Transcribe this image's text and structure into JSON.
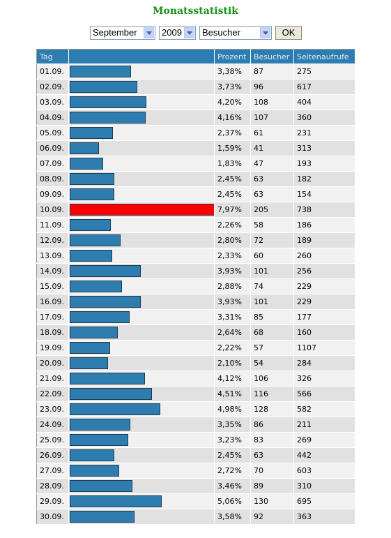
{
  "header": {
    "title": "Monatsstatistik"
  },
  "controls": {
    "month": "September",
    "year": "2009",
    "metric": "Besucher",
    "button": "OK"
  },
  "bar_color": "#2e7db0",
  "highlight_color": "#ff0000",
  "table": {
    "columns": [
      "Tag",
      "Prozent",
      "Besucher",
      "Seitenaufrufe"
    ],
    "rows": [
      [
        "01.09.",
        "3,38%",
        87,
        275
      ],
      [
        "02.09.",
        "3,73%",
        96,
        617
      ],
      [
        "03.09.",
        "4,20%",
        108,
        404
      ],
      [
        "04.09.",
        "4,16%",
        107,
        360
      ],
      [
        "05.09.",
        "2,37%",
        61,
        231
      ],
      [
        "06.09.",
        "1,59%",
        41,
        313
      ],
      [
        "07.09.",
        "1,83%",
        47,
        193
      ],
      [
        "08.09.",
        "2,45%",
        63,
        182
      ],
      [
        "09.09.",
        "2,45%",
        63,
        154
      ],
      [
        "10.09.",
        "7,97%",
        205,
        738
      ],
      [
        "11.09.",
        "2,26%",
        58,
        186
      ],
      [
        "12.09.",
        "2,80%",
        72,
        189
      ],
      [
        "13.09.",
        "2,33%",
        60,
        260
      ],
      [
        "14.09.",
        "3,93%",
        101,
        256
      ],
      [
        "15.09.",
        "2,88%",
        74,
        229
      ],
      [
        "16.09.",
        "3,93%",
        101,
        229
      ],
      [
        "17.09.",
        "3,31%",
        85,
        177
      ],
      [
        "18.09.",
        "2,64%",
        68,
        160
      ],
      [
        "19.09.",
        "2,22%",
        57,
        1107
      ],
      [
        "20.09.",
        "2,10%",
        54,
        284
      ],
      [
        "21.09.",
        "4,12%",
        106,
        326
      ],
      [
        "22.09.",
        "4,51%",
        116,
        566
      ],
      [
        "23.09.",
        "4,98%",
        128,
        582
      ],
      [
        "24.09.",
        "3,35%",
        86,
        211
      ],
      [
        "25.09.",
        "3,23%",
        83,
        269
      ],
      [
        "26.09.",
        "2,45%",
        63,
        442
      ],
      [
        "27.09.",
        "2,72%",
        70,
        603
      ],
      [
        "28.09.",
        "3,46%",
        89,
        310
      ],
      [
        "29.09.",
        "5,06%",
        130,
        695
      ],
      [
        "30.09.",
        "3,58%",
        92,
        363
      ]
    ]
  }
}
